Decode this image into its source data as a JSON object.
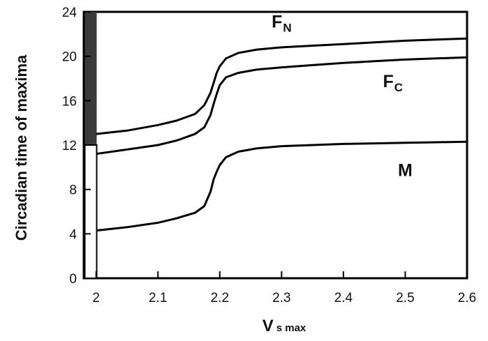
{
  "chart_data": {
    "type": "line",
    "xlabel": "V",
    "xlabel_sub": "s max",
    "ylabel": "Circadian time of maxima",
    "xlim": [
      1.98,
      2.6
    ],
    "ylim": [
      0,
      24
    ],
    "x_ticks": [
      2,
      2.1,
      2.2,
      2.3,
      2.4,
      2.5,
      2.6
    ],
    "x_tick_labels": [
      "2",
      "2.1",
      "2.2",
      "2.3",
      "2.4",
      "2.5",
      "2.6"
    ],
    "y_ticks": [
      0,
      4,
      8,
      12,
      16,
      20,
      24
    ],
    "y_tick_labels": [
      "0",
      "4",
      "8",
      "12",
      "16",
      "20",
      "24"
    ],
    "grid": false,
    "day_night_bar": {
      "dark_range": [
        12,
        24
      ],
      "light_range": [
        0,
        12
      ],
      "colors": {
        "dark": "#3a3a3a",
        "light": "#ffffff"
      }
    },
    "series": [
      {
        "name": "F",
        "subscript": "N",
        "x": [
          2.0,
          2.05,
          2.1,
          2.13,
          2.16,
          2.175,
          2.185,
          2.19,
          2.195,
          2.2,
          2.21,
          2.23,
          2.26,
          2.3,
          2.35,
          2.4,
          2.45,
          2.5,
          2.55,
          2.6
        ],
        "y": [
          13.0,
          13.3,
          13.8,
          14.2,
          14.8,
          15.6,
          16.7,
          17.6,
          18.5,
          19.1,
          19.8,
          20.3,
          20.6,
          20.8,
          20.95,
          21.1,
          21.25,
          21.4,
          21.5,
          21.6
        ]
      },
      {
        "name": "F",
        "subscript": "C",
        "x": [
          2.0,
          2.05,
          2.1,
          2.13,
          2.16,
          2.175,
          2.185,
          2.19,
          2.195,
          2.2,
          2.21,
          2.23,
          2.26,
          2.3,
          2.35,
          2.4,
          2.45,
          2.5,
          2.55,
          2.6
        ],
        "y": [
          11.2,
          11.6,
          12.0,
          12.4,
          13.0,
          13.6,
          14.7,
          15.7,
          16.6,
          17.4,
          18.1,
          18.5,
          18.8,
          19.0,
          19.2,
          19.4,
          19.55,
          19.7,
          19.8,
          19.9
        ]
      },
      {
        "name": "M",
        "x": [
          2.0,
          2.05,
          2.1,
          2.13,
          2.16,
          2.175,
          2.185,
          2.19,
          2.195,
          2.2,
          2.21,
          2.23,
          2.26,
          2.3,
          2.35,
          2.4,
          2.45,
          2.5,
          2.55,
          2.6
        ],
        "y": [
          4.3,
          4.6,
          5.0,
          5.4,
          5.9,
          6.5,
          7.8,
          8.9,
          9.6,
          10.2,
          10.9,
          11.4,
          11.7,
          11.9,
          12.0,
          12.1,
          12.15,
          12.2,
          12.25,
          12.3
        ]
      }
    ]
  }
}
